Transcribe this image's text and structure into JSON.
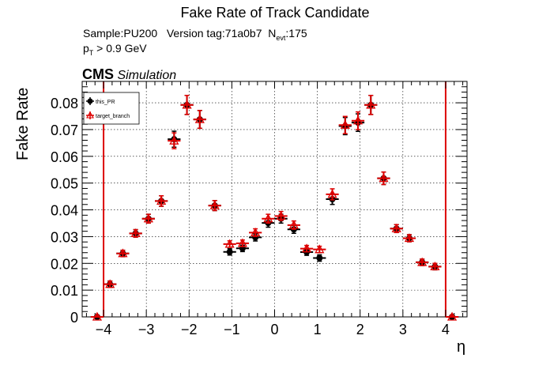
{
  "title": "Fake Rate of Track Candidate",
  "info": {
    "sample_label": "Sample:PU200",
    "version_label": "Version tag:71a0b7",
    "nevt_prefix": "N",
    "nevt_sub": "evt",
    "nevt_value": ":175",
    "pt_prefix": "p",
    "pt_sub": "T",
    "pt_cut": " > 0.9 GeV"
  },
  "cms_label": "CMS",
  "simulation_label": "Simulation",
  "chart_data": {
    "type": "scatter",
    "title": "Fake Rate of Track Candidate",
    "xlabel": "η",
    "ylabel": "Fake Rate",
    "xlim": [
      -4.5,
      4.5
    ],
    "ylim": [
      0,
      0.088
    ],
    "x_ticks": [
      -4,
      -3,
      -2,
      -1,
      0,
      1,
      2,
      3,
      4
    ],
    "x_tick_labels": [
      "−4",
      "−3",
      "−2",
      "−1",
      "0",
      "1",
      "2",
      "3",
      "4"
    ],
    "y_ticks": [
      0,
      0.01,
      0.02,
      0.03,
      0.04,
      0.05,
      0.06,
      0.07,
      0.08
    ],
    "y_tick_labels": [
      "0",
      "0.01",
      "0.02",
      "0.03",
      "0.04",
      "0.05",
      "0.06",
      "0.07",
      "0.08"
    ],
    "grid": true,
    "legend_position": "top-left",
    "vertical_lines": [
      -4,
      4
    ],
    "vertical_line_color": "#dd0000",
    "x": [
      -4.15,
      -3.85,
      -3.55,
      -3.25,
      -2.95,
      -2.65,
      -2.35,
      -2.05,
      -1.75,
      -1.4,
      -1.05,
      -0.75,
      -0.45,
      -0.15,
      0.15,
      0.45,
      0.75,
      1.05,
      1.35,
      1.65,
      1.95,
      2.25,
      2.55,
      2.85,
      3.15,
      3.45,
      3.75,
      4.15
    ],
    "series": [
      {
        "name": "this_PR",
        "color": "#000000",
        "marker": "filled-circle",
        "values": [
          0.0,
          0.0122,
          0.0237,
          0.0312,
          0.0367,
          0.0433,
          0.0664,
          0.0792,
          0.0738,
          0.0416,
          0.0243,
          0.0256,
          0.0297,
          0.0351,
          0.0367,
          0.0327,
          0.0242,
          0.022,
          0.044,
          0.0713,
          0.0726,
          0.0792,
          0.0518,
          0.033,
          0.0294,
          0.0204,
          0.0188,
          0.0
        ]
      },
      {
        "name": "target_branch",
        "color": "#dd0000",
        "marker": "open-triangle",
        "values": [
          0.0,
          0.0122,
          0.0237,
          0.0312,
          0.0367,
          0.0433,
          0.0658,
          0.0792,
          0.0738,
          0.0416,
          0.0272,
          0.0275,
          0.0315,
          0.0367,
          0.0377,
          0.0343,
          0.0255,
          0.0252,
          0.0458,
          0.0717,
          0.0733,
          0.0792,
          0.0518,
          0.033,
          0.0294,
          0.0204,
          0.0188,
          0.0
        ]
      }
    ]
  }
}
